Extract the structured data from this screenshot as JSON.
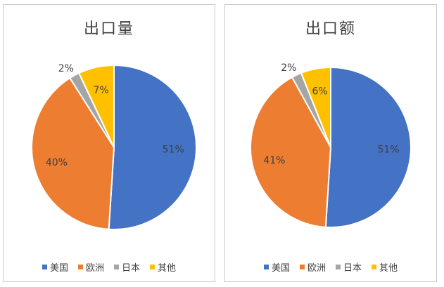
{
  "chart_data": [
    {
      "type": "pie",
      "title": "出口量",
      "categories": [
        "美国",
        "欧洲",
        "日本",
        "其他"
      ],
      "values": [
        51,
        40,
        2,
        7
      ],
      "labels": [
        "51%",
        "40%",
        "2%",
        "7%"
      ],
      "colors": [
        "#4472C4",
        "#ED7D31",
        "#A5A5A5",
        "#FFC000"
      ],
      "legend_position": "bottom"
    },
    {
      "type": "pie",
      "title": "出口额",
      "categories": [
        "美国",
        "欧洲",
        "日本",
        "其他"
      ],
      "values": [
        51,
        41,
        2,
        6
      ],
      "labels": [
        "51%",
        "41%",
        "2%",
        "6%"
      ],
      "colors": [
        "#4472C4",
        "#ED7D31",
        "#A5A5A5",
        "#FFC000"
      ],
      "legend_position": "bottom"
    }
  ]
}
